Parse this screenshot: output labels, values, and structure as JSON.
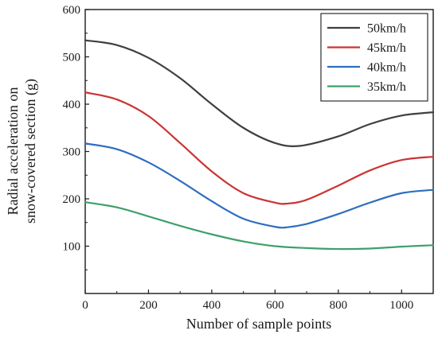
{
  "chart_data": {
    "type": "line",
    "xlabel": "Number of sample points",
    "ylabel_lines": [
      "Radial acceleration on",
      "snow-covered section (g)"
    ],
    "xlim": [
      0,
      1100
    ],
    "ylim": [
      0,
      600
    ],
    "xticks": [
      0,
      200,
      400,
      600,
      800,
      1000
    ],
    "yticks": [
      100,
      200,
      300,
      400,
      500,
      600
    ],
    "grid": false,
    "legend_position": "top-right",
    "series": [
      {
        "name": "50km/h",
        "color": "#3f3f3f",
        "points": [
          [
            0,
            535
          ],
          [
            100,
            525
          ],
          [
            200,
            498
          ],
          [
            300,
            455
          ],
          [
            400,
            400
          ],
          [
            500,
            350
          ],
          [
            600,
            318
          ],
          [
            680,
            312
          ],
          [
            800,
            332
          ],
          [
            900,
            358
          ],
          [
            1000,
            376
          ],
          [
            1100,
            383
          ]
        ]
      },
      {
        "name": "45km/h",
        "color": "#cc3333",
        "points": [
          [
            0,
            425
          ],
          [
            100,
            410
          ],
          [
            200,
            375
          ],
          [
            300,
            318
          ],
          [
            400,
            258
          ],
          [
            500,
            212
          ],
          [
            600,
            192
          ],
          [
            640,
            190
          ],
          [
            700,
            198
          ],
          [
            800,
            228
          ],
          [
            900,
            260
          ],
          [
            1000,
            282
          ],
          [
            1100,
            289
          ]
        ]
      },
      {
        "name": "40km/h",
        "color": "#2e6dbf",
        "points": [
          [
            0,
            317
          ],
          [
            100,
            305
          ],
          [
            200,
            277
          ],
          [
            300,
            238
          ],
          [
            400,
            195
          ],
          [
            500,
            158
          ],
          [
            600,
            141
          ],
          [
            640,
            140
          ],
          [
            700,
            147
          ],
          [
            800,
            168
          ],
          [
            900,
            192
          ],
          [
            1000,
            212
          ],
          [
            1100,
            219
          ]
        ]
      },
      {
        "name": "35km/h",
        "color": "#3fa06a",
        "points": [
          [
            0,
            193
          ],
          [
            100,
            182
          ],
          [
            200,
            163
          ],
          [
            300,
            143
          ],
          [
            400,
            125
          ],
          [
            500,
            110
          ],
          [
            600,
            100
          ],
          [
            700,
            96
          ],
          [
            800,
            94
          ],
          [
            900,
            95
          ],
          [
            1000,
            99
          ],
          [
            1100,
            102
          ]
        ]
      }
    ]
  }
}
